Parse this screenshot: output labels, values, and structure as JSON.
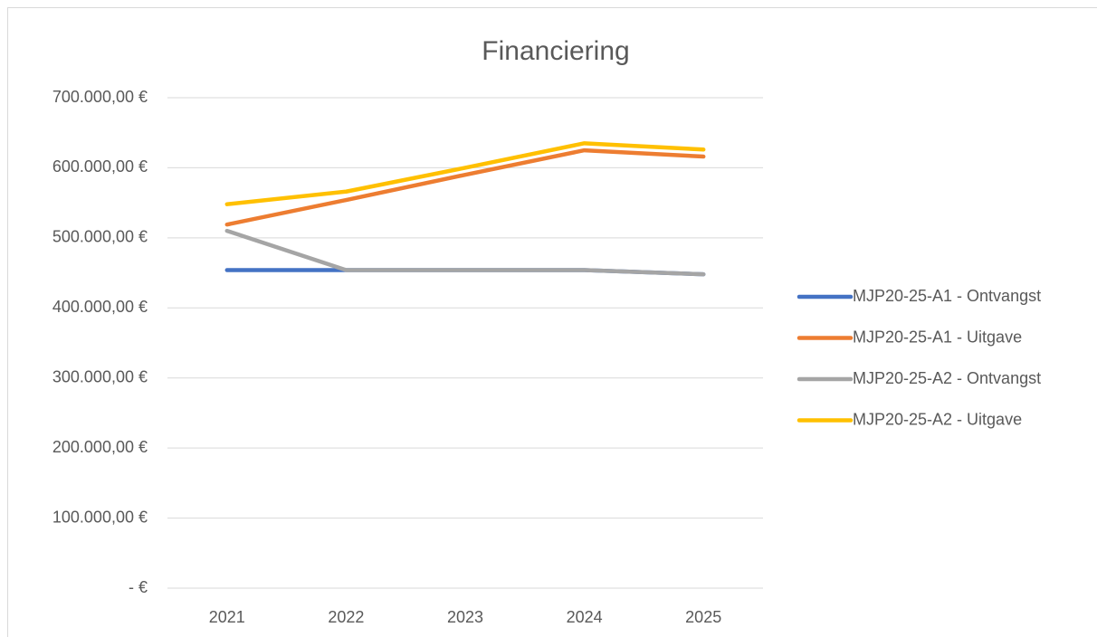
{
  "chart_data": {
    "type": "line",
    "title": "Financiering",
    "categories": [
      "2021",
      "2022",
      "2023",
      "2024",
      "2025"
    ],
    "series": [
      {
        "name": "MJP20-25-A1 - Ontvangst",
        "color": "#4472c4",
        "values": [
          454000,
          454000,
          454000,
          454000,
          448000
        ]
      },
      {
        "name": "MJP20-25-A1 - Uitgave",
        "color": "#ed7d31",
        "values": [
          519000,
          554000,
          590000,
          625000,
          616000
        ]
      },
      {
        "name": "MJP20-25-A2 - Ontvangst",
        "color": "#a5a5a5",
        "values": [
          510000,
          454000,
          454000,
          454000,
          448000
        ]
      },
      {
        "name": "MJP20-25-A2 - Uitgave",
        "color": "#ffc000",
        "values": [
          548000,
          566000,
          600000,
          635000,
          626000
        ]
      }
    ],
    "ylim": [
      0,
      700000
    ],
    "yticks": [
      {
        "value": 0,
        "label": "-   €"
      },
      {
        "value": 100000,
        "label": "100.000,00 €"
      },
      {
        "value": 200000,
        "label": "200.000,00 €"
      },
      {
        "value": 300000,
        "label": "300.000,00 €"
      },
      {
        "value": 400000,
        "label": "400.000,00 €"
      },
      {
        "value": 500000,
        "label": "500.000,00 €"
      },
      {
        "value": 600000,
        "label": "600.000,00 €"
      },
      {
        "value": 700000,
        "label": "700.000,00 €"
      }
    ],
    "grid": true,
    "legend": "right"
  }
}
